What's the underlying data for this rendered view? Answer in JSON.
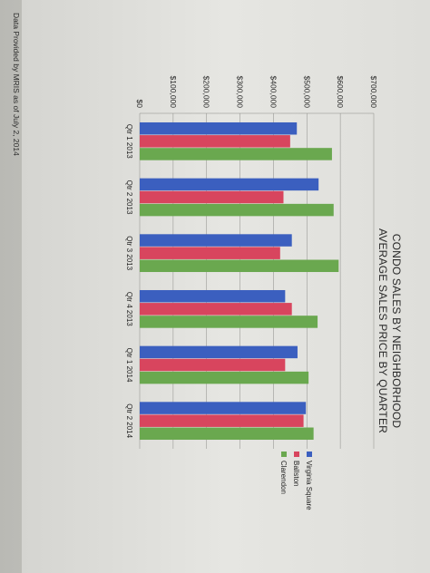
{
  "footnote": "Data Provided by MRIS as of July 2, 2014",
  "chart_data": {
    "type": "bar",
    "orientation": "vertical-bars, page rotated 90° clockwise",
    "title": "CONDO SALES BY NEIGHBORHOOD",
    "subtitle": "AVERAGE SALES PRICE BY QUARTER",
    "categories": [
      "Qtr 1 2013",
      "Qtr 2 2013",
      "Qtr 3 2013",
      "Qtr 4 2013",
      "Qtr 1 2014",
      "Qtr 2 2014"
    ],
    "series": [
      {
        "name": "Virginia Square",
        "color": "#3b5fbf",
        "values": [
          470000,
          535000,
          455000,
          435000,
          472000,
          497000
        ]
      },
      {
        "name": "Ballston",
        "color": "#d8455e",
        "values": [
          450000,
          430000,
          420000,
          455000,
          435000,
          490000
        ]
      },
      {
        "name": "Clarendon",
        "color": "#6aa84f",
        "values": [
          575000,
          580000,
          595000,
          532000,
          505000,
          520000
        ]
      }
    ],
    "yticks": [
      "$0",
      "$100,000",
      "$200,000",
      "$300,000",
      "$400,000",
      "$500,000",
      "$600,000",
      "$700,000"
    ],
    "ylim": [
      0,
      700000
    ],
    "grid": true,
    "legend": "right"
  }
}
